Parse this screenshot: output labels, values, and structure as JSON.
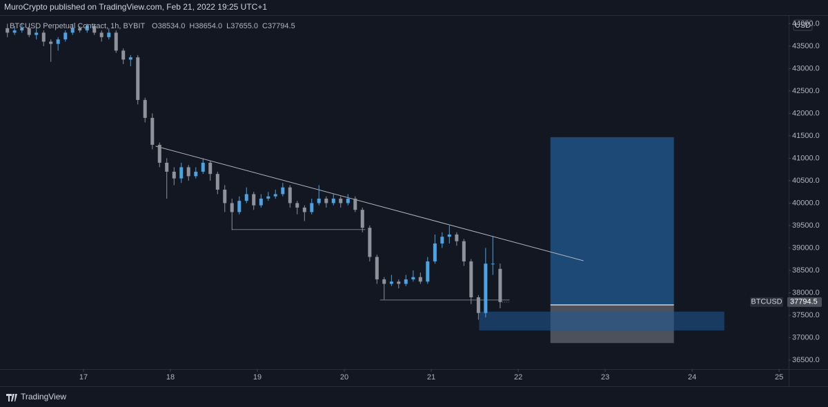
{
  "header": "MuroCrypto published on TradingView.com, Feb 21, 2022 19:25 UTC+1",
  "footer": "TradingView",
  "chart_data": {
    "type": "candlestick",
    "title": "BTCUSD Perpetual Contract, 1h, BYBIT",
    "ohlc_legend": [
      {
        "key": "O",
        "value": "38534.0"
      },
      {
        "key": "H",
        "value": "38654.0"
      },
      {
        "key": "L",
        "value": "37655.0"
      },
      {
        "key": "C",
        "value": "37794.5"
      }
    ],
    "currency": "USD",
    "symbol_tag": "BTCUSD",
    "last_price": 37794.5,
    "up_color": "#4ba3e3",
    "down_color": "#8f929b",
    "grid": false,
    "xlim": [
      16.04,
      25.11
    ],
    "xticks": [
      17,
      18,
      19,
      20,
      21,
      22,
      23,
      24,
      25
    ],
    "ylim": [
      36300,
      44190
    ],
    "yticks": [
      {
        "value": 36500,
        "label": "36500.0"
      },
      {
        "value": 37000,
        "label": "37000.0"
      },
      {
        "value": 37500,
        "label": "37500.0"
      },
      {
        "value": 38000,
        "label": "38000.0"
      },
      {
        "value": 38500,
        "label": "38500.0"
      },
      {
        "value": 39000,
        "label": "39000.0"
      },
      {
        "value": 39500,
        "label": "39500.0"
      },
      {
        "value": 40000,
        "label": "40000.0"
      },
      {
        "value": 40500,
        "label": "40500.0"
      },
      {
        "value": 41000,
        "label": "41000.0"
      },
      {
        "value": 41500,
        "label": "41500.0"
      },
      {
        "value": 42000,
        "label": "42000.0"
      },
      {
        "value": 42500,
        "label": "42500.0"
      },
      {
        "value": 43000,
        "label": "43000.0"
      },
      {
        "value": 43500,
        "label": "43500.0"
      },
      {
        "value": 44000,
        "label": "44000.0"
      }
    ],
    "x": [
      16.125,
      16.208,
      16.292,
      16.375,
      16.458,
      16.542,
      16.625,
      16.708,
      16.792,
      16.875,
      16.958,
      17.042,
      17.125,
      17.208,
      17.292,
      17.375,
      17.458,
      17.542,
      17.625,
      17.708,
      17.792,
      17.875,
      17.958,
      18.042,
      18.125,
      18.208,
      18.292,
      18.375,
      18.458,
      18.542,
      18.625,
      18.708,
      18.792,
      18.875,
      18.958,
      19.042,
      19.125,
      19.208,
      19.292,
      19.375,
      19.458,
      19.542,
      19.625,
      19.708,
      19.792,
      19.875,
      19.958,
      20.042,
      20.125,
      20.208,
      20.292,
      20.375,
      20.458,
      20.542,
      20.625,
      20.708,
      20.792,
      20.875,
      20.958,
      21.042,
      21.125,
      21.208,
      21.292,
      21.375,
      21.458,
      21.542,
      21.625,
      21.708,
      21.792
    ],
    "open": [
      43900,
      43800,
      43850,
      43900,
      43750,
      43800,
      43600,
      43550,
      43650,
      43800,
      43900,
      43850,
      43950,
      43800,
      43700,
      43800,
      43400,
      43200,
      43250,
      42300,
      41900,
      41300,
      40900,
      40700,
      40550,
      40800,
      40600,
      40700,
      40900,
      40650,
      40300,
      40000,
      39800,
      40050,
      40200,
      39950,
      40100,
      40150,
      40200,
      40350,
      40000,
      39900,
      39800,
      40000,
      40100,
      40000,
      40100,
      40000,
      40100,
      39850,
      39450,
      38800,
      38300,
      38200,
      38250,
      38200,
      38300,
      38350,
      38250,
      38700,
      39100,
      39250,
      39300,
      39150,
      38700,
      37900,
      37550,
      38650,
      38534
    ],
    "high": [
      44000,
      43950,
      44000,
      43950,
      43900,
      43850,
      43650,
      43700,
      43850,
      44000,
      43950,
      44000,
      44000,
      43850,
      43900,
      43850,
      43450,
      43300,
      43300,
      42350,
      42000,
      41350,
      41000,
      40800,
      40900,
      40850,
      40800,
      41000,
      40950,
      40700,
      40400,
      40100,
      40150,
      40350,
      40250,
      40200,
      40250,
      40300,
      40450,
      40400,
      40050,
      39950,
      40100,
      40400,
      40150,
      40200,
      40150,
      40200,
      40150,
      39900,
      39500,
      38850,
      38350,
      38400,
      38300,
      38400,
      38500,
      38450,
      38800,
      39300,
      39350,
      39500,
      39350,
      39200,
      38750,
      37950,
      39000,
      39270,
      38654
    ],
    "low": [
      43700,
      43750,
      43800,
      43700,
      43650,
      43500,
      43150,
      43400,
      43600,
      43750,
      43800,
      43800,
      43750,
      43600,
      43650,
      43350,
      43100,
      43050,
      42200,
      41800,
      41200,
      40800,
      40100,
      40400,
      40450,
      40500,
      40550,
      40650,
      40500,
      40200,
      39800,
      39400,
      39750,
      40000,
      39850,
      39900,
      40050,
      40100,
      40150,
      39900,
      39750,
      39600,
      39750,
      39950,
      39900,
      39950,
      39900,
      39950,
      39800,
      39350,
      38700,
      38200,
      37850,
      38150,
      38100,
      38150,
      38250,
      38200,
      38200,
      38650,
      39000,
      39100,
      39050,
      38600,
      37750,
      37400,
      37450,
      38400,
      37655
    ],
    "close": [
      43800,
      43850,
      43900,
      43750,
      43800,
      43600,
      43550,
      43650,
      43800,
      43900,
      43850,
      43950,
      43800,
      43700,
      43800,
      43400,
      43200,
      43250,
      42300,
      41900,
      41300,
      40900,
      40700,
      40550,
      40800,
      40600,
      40700,
      40900,
      40650,
      40300,
      40000,
      39800,
      40050,
      40200,
      39950,
      40100,
      40150,
      40200,
      40350,
      40000,
      39900,
      39800,
      40000,
      40100,
      40000,
      40100,
      40000,
      40100,
      39850,
      39450,
      38800,
      38300,
      38200,
      38250,
      38200,
      38300,
      38350,
      38250,
      38700,
      39100,
      39250,
      39300,
      39150,
      38700,
      37900,
      37550,
      38650,
      38650,
      37794.5
    ],
    "trendline": {
      "x": [
        17.83,
        22.75
      ],
      "y": [
        41270,
        38715
      ]
    },
    "levels": [
      {
        "x": [
          18.71,
          20.24
        ],
        "y": 39410
      },
      {
        "x": [
          20.41,
          21.9
        ],
        "y": 37840
      }
    ],
    "position": {
      "x": [
        22.37,
        23.79
      ],
      "target": 41470,
      "entry": 37730,
      "stop": 36880
    },
    "zone": {
      "x": [
        21.55,
        24.37
      ],
      "y": [
        37160,
        37580
      ]
    }
  }
}
